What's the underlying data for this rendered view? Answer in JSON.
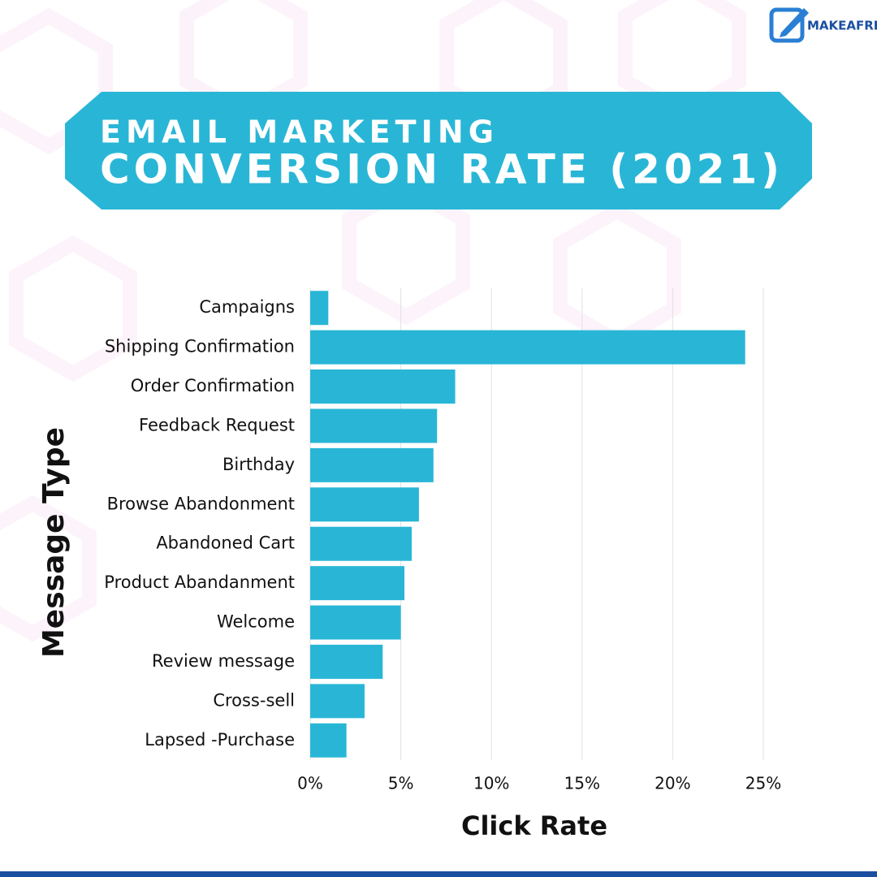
{
  "logo": "MAKEAFREE",
  "chart_data": {
    "type": "bar",
    "orientation": "horizontal",
    "title": "EMAIL MARKETING",
    "subtitle": "CONVERSION RATE (2021)",
    "x_label": "Click Rate",
    "y_label": "Message Type",
    "categories": [
      "Campaigns",
      "Shipping Confirmation",
      "Order Confirmation",
      "Feedback Request",
      "Birthday",
      "Browse Abandonment",
      "Abandoned Cart",
      "Product Abandanment",
      "Welcome",
      "Review message",
      "Cross-sell",
      "Lapsed -Purchase"
    ],
    "values": [
      1.0,
      24.0,
      8.0,
      7.0,
      6.8,
      6.0,
      5.6,
      5.2,
      5.0,
      4.0,
      3.0,
      2.0
    ],
    "color": "#29b6d6",
    "xlim": [
      0,
      25
    ],
    "xticks": [
      {
        "value": 0,
        "label": "0%"
      },
      {
        "value": 5,
        "label": "5%"
      },
      {
        "value": 10,
        "label": "10%"
      },
      {
        "value": 15,
        "label": "15%"
      },
      {
        "value": 20,
        "label": "20%"
      },
      {
        "value": 25,
        "label": "25%"
      }
    ],
    "grid": true
  }
}
